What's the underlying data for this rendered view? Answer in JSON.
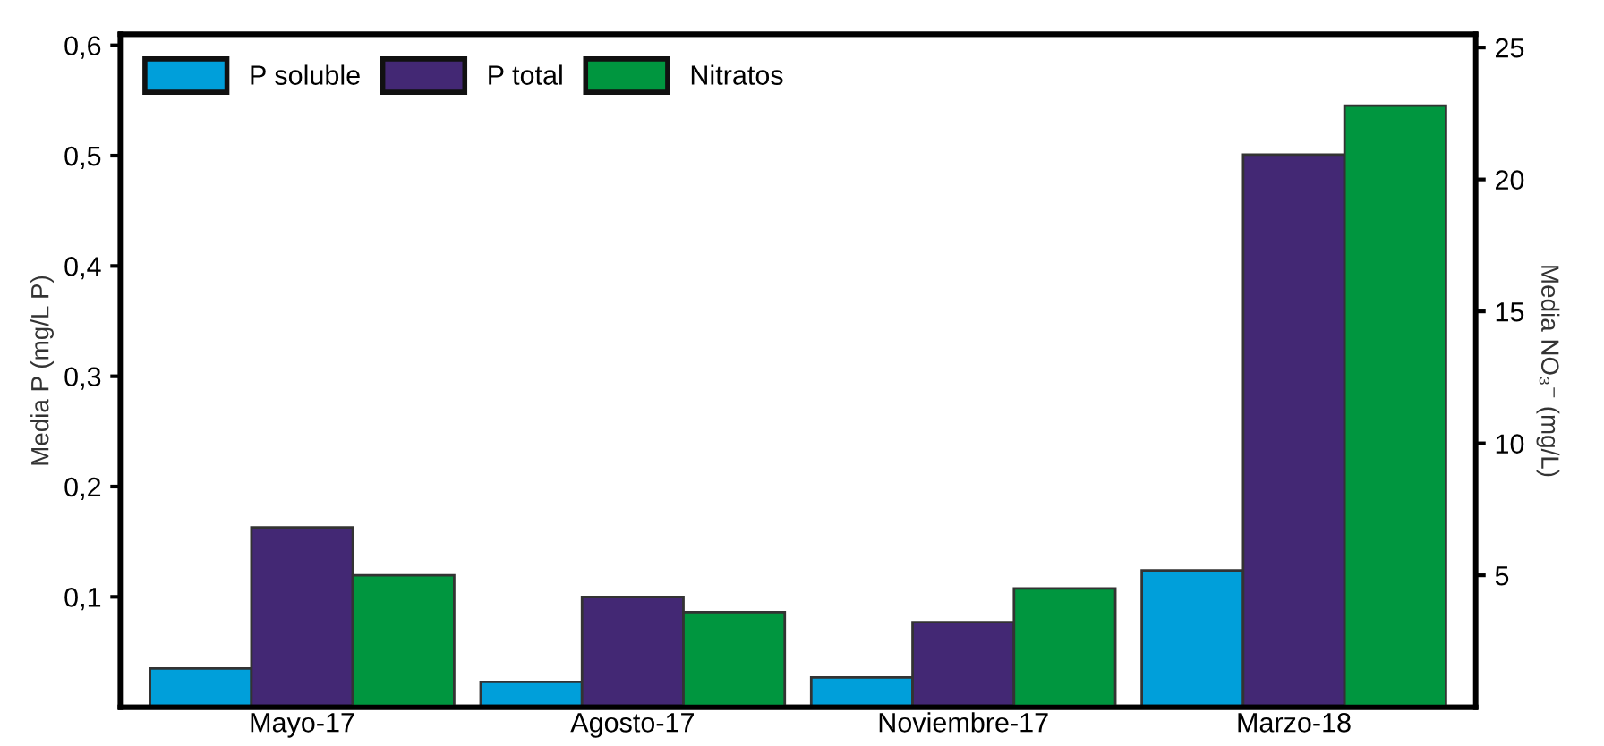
{
  "chart_data": {
    "type": "bar",
    "categories": [
      "Mayo-17",
      "Agosto-17",
      "Noviembre-17",
      "Marzo-18"
    ],
    "ylabel": "Media P (mg/L P)",
    "y2label": "Media NO₃⁻ (mg/L)",
    "series": [
      {
        "name": "P soluble",
        "color": "#009fda",
        "values": [
          0.035,
          0.023,
          0.027,
          0.124
        ]
      },
      {
        "name": "P total",
        "color": "#432874",
        "values": [
          0.163,
          0.1,
          0.077,
          0.501
        ]
      },
      {
        "name": "Nitratos",
        "color": "#00963f",
        "axis": "y2",
        "values": [
          5.0,
          3.6,
          4.5,
          22.8
        ]
      }
    ],
    "ylim": [
      0,
      0.61
    ],
    "yticks": [
      {
        "value": 0.1,
        "label": "0,1"
      },
      {
        "value": 0.2,
        "label": "0,2"
      },
      {
        "value": 0.3,
        "label": "0,3"
      },
      {
        "value": 0.4,
        "label": "0,4"
      },
      {
        "value": 0.5,
        "label": "0,5"
      },
      {
        "value": 0.6,
        "label": "0,6"
      }
    ],
    "y2lim": [
      0,
      25.5
    ],
    "y2ticks": [
      5,
      10,
      15,
      20,
      25
    ],
    "legend": "top left",
    "grid": false
  }
}
